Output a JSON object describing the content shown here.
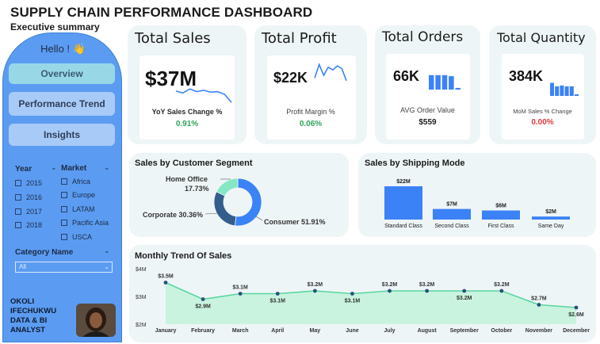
{
  "header": {
    "title": "SUPPLY CHAIN PERFORMANCE DASHBOARD",
    "subtitle": "Executive summary"
  },
  "sidebar": {
    "greeting": "Hello ! 👋",
    "nav": {
      "overview": "Overview",
      "trend": "Performance Trend",
      "insights": "Insights"
    },
    "year_filter": {
      "label": "Year",
      "options": [
        "2015",
        "2016",
        "2017",
        "2018"
      ]
    },
    "market_filter": {
      "label": "Market",
      "options": [
        "Africa",
        "Europe",
        "LATAM",
        "Pacific Asia",
        "USCA"
      ]
    },
    "category_filter": {
      "label": "Category Name",
      "value": "All"
    },
    "author": {
      "line1": "OKOLI",
      "line2": "IFECHUKWU",
      "line3": "DATA & BI",
      "line4": "ANALYST"
    }
  },
  "kpis": {
    "sales": {
      "title": "Total Sales",
      "value": "$37M",
      "sub": "YoY Sales Change %",
      "pct": "0.91%",
      "pct_color": "#2fa35a"
    },
    "profit": {
      "title": "Total Profit",
      "value": "$22K",
      "sub": "Profit Margin %",
      "pct": "0.06%",
      "pct_color": "#2fa35a"
    },
    "orders": {
      "title": "Total Orders",
      "value": "66K",
      "sub": "AVG Order Value",
      "pct": "$559",
      "pct_color": "#1b1b1b"
    },
    "quantity": {
      "title": "Total Quantity",
      "value": "384K",
      "sub": "MoM Sales % Change",
      "pct": "0.00%",
      "pct_color": "#e03b3b"
    }
  },
  "segment": {
    "title": "Sales by Customer Segment",
    "labels": {
      "home": "Home Office",
      "home_pct": "17.73%",
      "corporate": "Corporate 30.36%",
      "consumer": "Consumer 51.91%"
    },
    "values": [
      51.91,
      30.36,
      17.73
    ],
    "colors": [
      "#3b82f6",
      "#345d8c",
      "#86e7c4"
    ]
  },
  "chart_data": [
    {
      "type": "bar",
      "title": "Sales by Shipping Mode",
      "categories": [
        "Standard Class",
        "Second Class",
        "First Class",
        "Same Day"
      ],
      "values": [
        22,
        7,
        6,
        2
      ],
      "value_labels": [
        "$22M",
        "$7M",
        "$6M",
        "$2M"
      ],
      "unit": "$M",
      "color": "#3b82f6"
    },
    {
      "type": "area",
      "title": "Monthly Trend Of Sales",
      "categories": [
        "January",
        "February",
        "March",
        "April",
        "May",
        "June",
        "July",
        "August",
        "September",
        "October",
        "November",
        "December"
      ],
      "values": [
        3.5,
        2.9,
        3.1,
        3.1,
        3.2,
        3.1,
        3.2,
        3.2,
        3.2,
        3.2,
        2.7,
        2.6
      ],
      "value_labels": [
        "$3.5M",
        "$2.9M",
        "$3.1M",
        "$3.1M",
        "$3.2M",
        "$3.1M",
        "$3.2M",
        "$3.2M",
        "$3.2M",
        "$3.2M",
        "$2.7M",
        "$2.6M"
      ],
      "yticks": [
        "$4M",
        "$3M",
        "$2M"
      ],
      "ylim": [
        2,
        4
      ],
      "line_color": "#57d6a0",
      "fill_color": "#c9f3df",
      "point_color": "#2c4f7c"
    }
  ],
  "sparklines": {
    "sales": [
      0.62,
      0.55,
      0.7,
      0.6,
      0.65,
      0.58,
      0.6,
      0.5,
      0.2
    ],
    "profit": [
      0.4,
      0.9,
      0.5,
      0.8,
      0.7,
      0.85,
      0.75,
      0.3
    ],
    "orders_bars": [
      0.7,
      0.7,
      0.7,
      0.65,
      0.08
    ],
    "quantity_bars": [
      0.75,
      0.55,
      0.6,
      0.55,
      0.55,
      0.05
    ]
  }
}
